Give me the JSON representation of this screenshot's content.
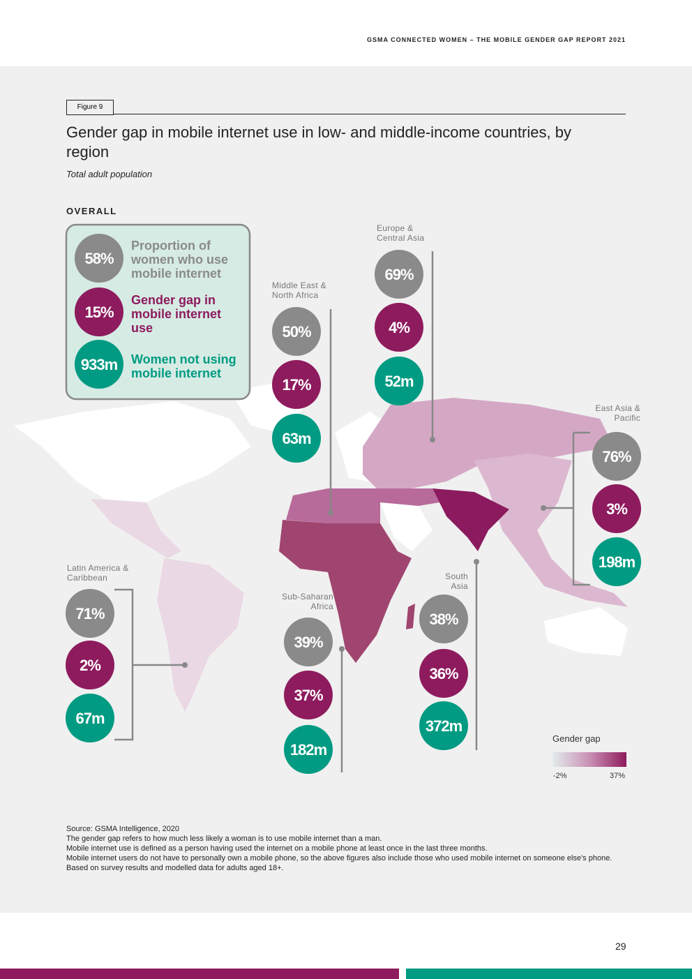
{
  "header": {
    "running_title": "GSMA CONNECTED WOMEN – THE MOBILE GENDER GAP REPORT 2021"
  },
  "figure": {
    "label": "Figure 9",
    "title": "Gender gap in mobile internet use in low- and middle-income countries, by region",
    "subtitle": "Total adult population"
  },
  "overall": {
    "heading": "OVERALL",
    "items": [
      {
        "value": "58%",
        "label": "Proportion of women who use mobile internet"
      },
      {
        "value": "15%",
        "label": "Gender gap in mobile internet use"
      },
      {
        "value": "933m",
        "label": "Women not using mobile internet"
      }
    ]
  },
  "regions": [
    {
      "name": "Europe & Central Asia",
      "values": [
        "69%",
        "4%",
        "52m"
      ]
    },
    {
      "name": "Middle East & North Africa",
      "values": [
        "50%",
        "17%",
        "63m"
      ]
    },
    {
      "name": "East Asia & Pacific",
      "values": [
        "76%",
        "3%",
        "198m"
      ]
    },
    {
      "name": "Latin America & Caribbean",
      "values": [
        "71%",
        "2%",
        "67m"
      ]
    },
    {
      "name": "Sub-Saharan Africa",
      "values": [
        "39%",
        "37%",
        "182m"
      ]
    },
    {
      "name": "South Asia",
      "values": [
        "38%",
        "36%",
        "372m"
      ]
    }
  ],
  "legend": {
    "title": "Gender gap",
    "min": "-2%",
    "max": "37%"
  },
  "notes": [
    "Source: GSMA Intelligence, 2020",
    "The gender gap refers to how much less likely a woman is to use mobile internet than a man.",
    "Mobile internet use is defined as a person having used the internet on a mobile phone at least once in the last three months.",
    "Mobile internet users do not have to personally own a mobile phone, so the above figures also include those who used mobile internet on someone else's phone.",
    "Based on survey results and modelled data for adults aged 18+."
  ],
  "footer": {
    "page": "29"
  }
}
